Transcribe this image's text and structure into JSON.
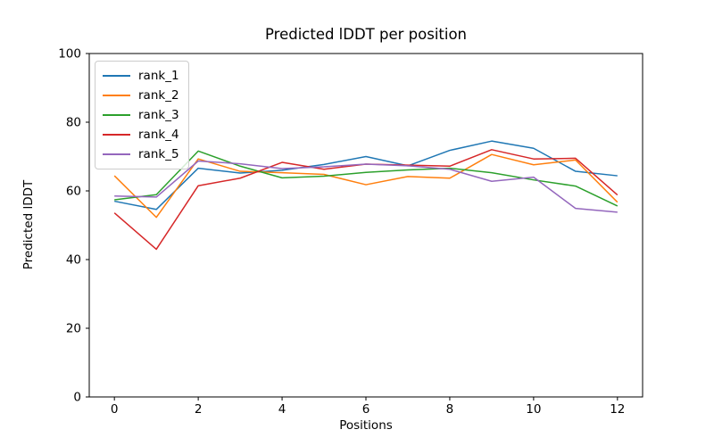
{
  "chart_data": {
    "type": "line",
    "title": "Predicted lDDT per position",
    "xlabel": "Positions",
    "ylabel": "Predicted lDDT",
    "x": [
      0,
      1,
      2,
      3,
      4,
      5,
      6,
      7,
      8,
      9,
      10,
      11,
      12
    ],
    "series": [
      {
        "name": "rank_1",
        "color": "#1f77b4",
        "values": [
          57.0,
          54.6,
          66.6,
          65.2,
          66.0,
          67.7,
          70.0,
          67.3,
          71.8,
          74.5,
          72.4,
          65.7,
          64.4
        ]
      },
      {
        "name": "rank_2",
        "color": "#ff7f0e",
        "values": [
          64.4,
          52.3,
          69.3,
          65.7,
          65.3,
          64.8,
          61.8,
          64.2,
          63.7,
          70.6,
          67.6,
          69.0,
          56.7
        ]
      },
      {
        "name": "rank_3",
        "color": "#2ca02c",
        "values": [
          57.4,
          58.9,
          71.6,
          67.2,
          63.8,
          64.3,
          65.4,
          66.1,
          66.6,
          65.3,
          63.2,
          61.4,
          55.6
        ]
      },
      {
        "name": "rank_4",
        "color": "#d62728",
        "values": [
          53.6,
          43.0,
          61.5,
          63.7,
          68.3,
          66.3,
          67.8,
          67.5,
          67.2,
          72.0,
          69.3,
          69.5,
          58.8
        ]
      },
      {
        "name": "rank_5",
        "color": "#9467bd",
        "values": [
          58.5,
          58.2,
          68.7,
          67.9,
          66.5,
          67.0,
          67.8,
          67.3,
          66.3,
          62.8,
          64.0,
          54.9,
          53.8
        ]
      }
    ],
    "xlim": [
      -0.6,
      12.6
    ],
    "ylim": [
      0,
      100
    ],
    "xticks": [
      0,
      2,
      4,
      6,
      8,
      10,
      12
    ],
    "yticks": [
      0,
      20,
      40,
      60,
      80,
      100
    ],
    "legend_position": "upper left",
    "grid": false,
    "line_width": 1.5,
    "spine_color": "#000000",
    "background_color": "#ffffff"
  }
}
